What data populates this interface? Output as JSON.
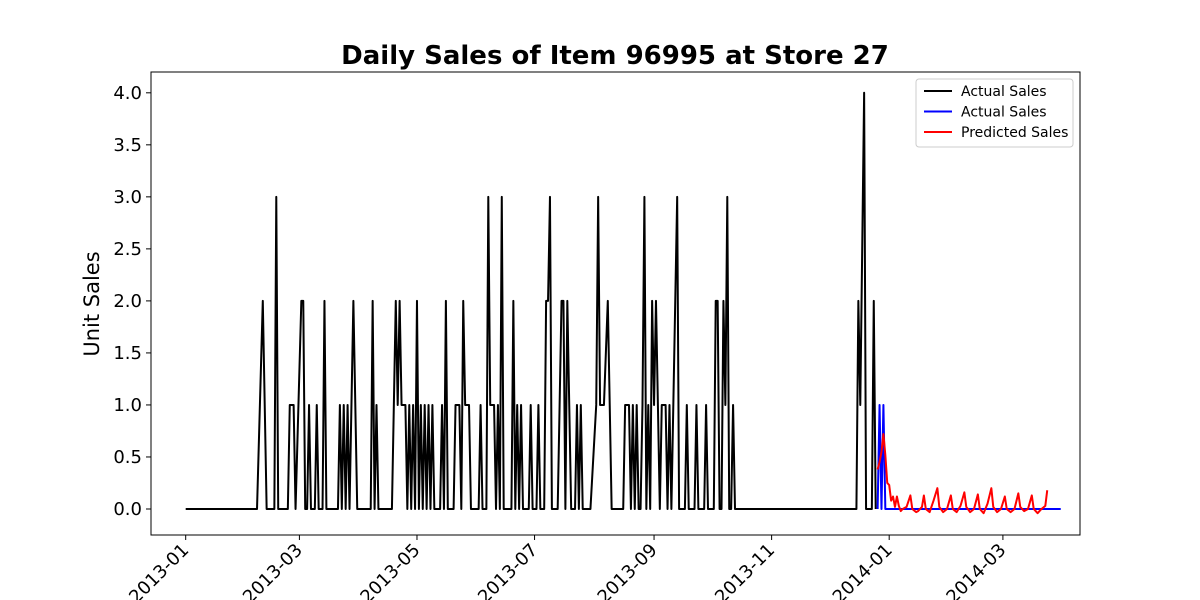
{
  "chart_data": {
    "type": "line",
    "title": "Daily Sales of Item 96995 at Store 27",
    "xlabel": "",
    "ylabel": "Unit Sales",
    "xlim": [
      "2012-12-14",
      "2014-04-10"
    ],
    "ylim": [
      -0.25,
      4.2
    ],
    "x_ticks": [
      "2013-01",
      "2013-03",
      "2013-05",
      "2013-07",
      "2013-09",
      "2013-11",
      "2014-01",
      "2014-03"
    ],
    "y_ticks": [
      "0.0",
      "0.5",
      "1.0",
      "1.5",
      "2.0",
      "2.5",
      "3.0",
      "3.5",
      "4.0"
    ],
    "grid": false,
    "legend_position": "top-right",
    "series": [
      {
        "name": "Actual Sales",
        "color": "#000000",
        "points": [
          [
            "2013-01-01",
            0
          ],
          [
            "2013-02-07",
            0
          ],
          [
            "2013-02-10",
            2
          ],
          [
            "2013-02-12",
            0
          ],
          [
            "2013-02-16",
            0
          ],
          [
            "2013-02-17",
            3
          ],
          [
            "2013-02-18",
            0
          ],
          [
            "2013-02-23",
            0
          ],
          [
            "2013-02-24",
            1
          ],
          [
            "2013-02-26",
            1
          ],
          [
            "2013-02-27",
            0
          ],
          [
            "2013-03-02",
            2
          ],
          [
            "2013-03-03",
            2
          ],
          [
            "2013-03-04",
            0
          ],
          [
            "2013-03-05",
            0
          ],
          [
            "2013-03-06",
            1
          ],
          [
            "2013-03-07",
            0
          ],
          [
            "2013-03-09",
            0
          ],
          [
            "2013-03-10",
            1
          ],
          [
            "2013-03-11",
            0
          ],
          [
            "2013-03-13",
            0
          ],
          [
            "2013-03-14",
            2
          ],
          [
            "2013-03-15",
            0
          ],
          [
            "2013-03-21",
            0
          ],
          [
            "2013-03-22",
            1
          ],
          [
            "2013-03-23",
            0
          ],
          [
            "2013-03-24",
            1
          ],
          [
            "2013-03-25",
            0
          ],
          [
            "2013-03-26",
            1
          ],
          [
            "2013-03-27",
            0
          ],
          [
            "2013-03-29",
            2
          ],
          [
            "2013-03-31",
            0
          ],
          [
            "2013-04-07",
            0
          ],
          [
            "2013-04-08",
            2
          ],
          [
            "2013-04-09",
            0
          ],
          [
            "2013-04-10",
            1
          ],
          [
            "2013-04-11",
            0
          ],
          [
            "2013-04-18",
            0
          ],
          [
            "2013-04-20",
            2
          ],
          [
            "2013-04-21",
            1
          ],
          [
            "2013-04-22",
            2
          ],
          [
            "2013-04-23",
            1
          ],
          [
            "2013-04-25",
            1
          ],
          [
            "2013-04-26",
            0
          ],
          [
            "2013-04-27",
            1
          ],
          [
            "2013-04-28",
            0
          ],
          [
            "2013-04-29",
            1
          ],
          [
            "2013-04-30",
            0
          ],
          [
            "2013-05-01",
            2
          ],
          [
            "2013-05-02",
            0
          ],
          [
            "2013-05-03",
            1
          ],
          [
            "2013-05-04",
            0
          ],
          [
            "2013-05-05",
            1
          ],
          [
            "2013-05-06",
            0
          ],
          [
            "2013-05-07",
            1
          ],
          [
            "2013-05-08",
            0
          ],
          [
            "2013-05-09",
            1
          ],
          [
            "2013-05-10",
            0
          ],
          [
            "2013-05-13",
            0
          ],
          [
            "2013-05-14",
            1
          ],
          [
            "2013-05-15",
            0
          ],
          [
            "2013-05-16",
            2
          ],
          [
            "2013-05-17",
            0
          ],
          [
            "2013-05-20",
            0
          ],
          [
            "2013-05-21",
            1
          ],
          [
            "2013-05-23",
            1
          ],
          [
            "2013-05-24",
            0
          ],
          [
            "2013-05-25",
            2
          ],
          [
            "2013-05-26",
            1
          ],
          [
            "2013-05-28",
            1
          ],
          [
            "2013-05-29",
            0
          ],
          [
            "2013-06-02",
            0
          ],
          [
            "2013-06-03",
            1
          ],
          [
            "2013-06-04",
            0
          ],
          [
            "2013-06-06",
            0
          ],
          [
            "2013-06-07",
            3
          ],
          [
            "2013-06-08",
            1
          ],
          [
            "2013-06-10",
            1
          ],
          [
            "2013-06-11",
            0
          ],
          [
            "2013-06-12",
            1
          ],
          [
            "2013-06-13",
            0
          ],
          [
            "2013-06-14",
            3
          ],
          [
            "2013-06-15",
            0
          ],
          [
            "2013-06-19",
            0
          ],
          [
            "2013-06-20",
            2
          ],
          [
            "2013-06-21",
            0
          ],
          [
            "2013-06-22",
            1
          ],
          [
            "2013-06-23",
            0
          ],
          [
            "2013-06-24",
            1
          ],
          [
            "2013-06-25",
            0
          ],
          [
            "2013-06-28",
            0
          ],
          [
            "2013-06-29",
            1
          ],
          [
            "2013-06-30",
            0
          ],
          [
            "2013-07-02",
            0
          ],
          [
            "2013-07-03",
            1
          ],
          [
            "2013-07-04",
            0
          ],
          [
            "2013-07-06",
            0
          ],
          [
            "2013-07-07",
            2
          ],
          [
            "2013-07-08",
            2
          ],
          [
            "2013-07-09",
            3
          ],
          [
            "2013-07-10",
            0
          ],
          [
            "2013-07-13",
            0
          ],
          [
            "2013-07-14",
            1
          ],
          [
            "2013-07-15",
            2
          ],
          [
            "2013-07-16",
            2
          ],
          [
            "2013-07-17",
            0
          ],
          [
            "2013-07-18",
            2
          ],
          [
            "2013-07-19",
            1
          ],
          [
            "2013-07-20",
            0
          ],
          [
            "2013-07-22",
            0
          ],
          [
            "2013-07-23",
            1
          ],
          [
            "2013-07-24",
            0
          ],
          [
            "2013-07-25",
            1
          ],
          [
            "2013-07-26",
            0
          ],
          [
            "2013-07-30",
            0
          ],
          [
            "2013-08-02",
            1
          ],
          [
            "2013-08-03",
            3
          ],
          [
            "2013-08-04",
            1
          ],
          [
            "2013-08-06",
            1
          ],
          [
            "2013-08-08",
            2
          ],
          [
            "2013-08-10",
            0
          ],
          [
            "2013-08-11",
            0
          ],
          [
            "2013-08-16",
            0
          ],
          [
            "2013-08-17",
            1
          ],
          [
            "2013-08-19",
            1
          ],
          [
            "2013-08-20",
            0
          ],
          [
            "2013-08-21",
            1
          ],
          [
            "2013-08-22",
            0
          ],
          [
            "2013-08-23",
            1
          ],
          [
            "2013-08-24",
            0
          ],
          [
            "2013-08-25",
            0
          ],
          [
            "2013-08-26",
            1
          ],
          [
            "2013-08-27",
            3
          ],
          [
            "2013-08-28",
            0
          ],
          [
            "2013-08-29",
            1
          ],
          [
            "2013-08-30",
            0
          ],
          [
            "2013-08-31",
            2
          ],
          [
            "2013-09-01",
            1
          ],
          [
            "2013-09-02",
            2
          ],
          [
            "2013-09-03",
            1
          ],
          [
            "2013-09-04",
            0
          ],
          [
            "2013-09-05",
            1
          ],
          [
            "2013-09-07",
            1
          ],
          [
            "2013-09-08",
            0
          ],
          [
            "2013-09-09",
            1
          ],
          [
            "2013-09-10",
            0
          ],
          [
            "2013-09-11",
            1
          ],
          [
            "2013-09-13",
            3
          ],
          [
            "2013-09-14",
            0
          ],
          [
            "2013-09-17",
            0
          ],
          [
            "2013-09-18",
            1
          ],
          [
            "2013-09-19",
            0
          ],
          [
            "2013-09-22",
            0
          ],
          [
            "2013-09-23",
            1
          ],
          [
            "2013-09-24",
            0
          ],
          [
            "2013-09-27",
            0
          ],
          [
            "2013-09-28",
            1
          ],
          [
            "2013-09-29",
            0
          ],
          [
            "2013-10-02",
            0
          ],
          [
            "2013-10-03",
            2
          ],
          [
            "2013-10-04",
            2
          ],
          [
            "2013-10-05",
            0
          ],
          [
            "2013-10-06",
            0
          ],
          [
            "2013-10-07",
            2
          ],
          [
            "2013-10-08",
            1
          ],
          [
            "2013-10-09",
            3
          ],
          [
            "2013-10-10",
            0
          ],
          [
            "2013-10-11",
            0
          ],
          [
            "2013-10-12",
            1
          ],
          [
            "2013-10-13",
            0
          ],
          [
            "2013-12-15",
            0
          ],
          [
            "2013-12-16",
            2
          ],
          [
            "2013-12-17",
            1
          ],
          [
            "2013-12-19",
            4
          ],
          [
            "2013-12-20",
            0
          ],
          [
            "2013-12-23",
            0
          ],
          [
            "2013-12-24",
            2
          ],
          [
            "2013-12-25",
            0
          ]
        ]
      },
      {
        "name": "Actual Sales",
        "color": "#0000ff",
        "points": [
          [
            "2013-12-26",
            0
          ],
          [
            "2013-12-27",
            1
          ],
          [
            "2013-12-28",
            0
          ],
          [
            "2013-12-29",
            1
          ],
          [
            "2013-12-30",
            0
          ],
          [
            "2014-03-31",
            0
          ]
        ]
      },
      {
        "name": "Predicted Sales",
        "color": "#ff0000",
        "points": [
          [
            "2013-12-26",
            0.38
          ],
          [
            "2013-12-27",
            0.45
          ],
          [
            "2013-12-28",
            0.55
          ],
          [
            "2013-12-29",
            0.72
          ],
          [
            "2013-12-30",
            0.52
          ],
          [
            "2013-12-31",
            0.25
          ],
          [
            "2014-01-01",
            0.23
          ],
          [
            "2014-01-02",
            0.08
          ],
          [
            "2014-01-03",
            0.12
          ],
          [
            "2014-01-04",
            0.02
          ],
          [
            "2014-01-05",
            0.12
          ],
          [
            "2014-01-06",
            0.03
          ],
          [
            "2014-01-07",
            -0.02
          ],
          [
            "2014-01-08",
            0.0
          ],
          [
            "2014-01-10",
            0.02
          ],
          [
            "2014-01-12",
            0.13
          ],
          [
            "2014-01-13",
            0.0
          ],
          [
            "2014-01-15",
            -0.03
          ],
          [
            "2014-01-16",
            -0.02
          ],
          [
            "2014-01-18",
            0.02
          ],
          [
            "2014-01-19",
            0.13
          ],
          [
            "2014-01-20",
            0.0
          ],
          [
            "2014-01-22",
            -0.03
          ],
          [
            "2014-01-24",
            0.08
          ],
          [
            "2014-01-26",
            0.2
          ],
          [
            "2014-01-27",
            0.02
          ],
          [
            "2014-01-29",
            -0.03
          ],
          [
            "2014-01-31",
            0.0
          ],
          [
            "2014-02-02",
            0.13
          ],
          [
            "2014-02-03",
            0.0
          ],
          [
            "2014-02-05",
            -0.03
          ],
          [
            "2014-02-07",
            0.03
          ],
          [
            "2014-02-09",
            0.16
          ],
          [
            "2014-02-10",
            0.02
          ],
          [
            "2014-02-12",
            -0.03
          ],
          [
            "2014-02-14",
            0.0
          ],
          [
            "2014-02-16",
            0.14
          ],
          [
            "2014-02-17",
            0.0
          ],
          [
            "2014-02-19",
            -0.04
          ],
          [
            "2014-02-21",
            0.05
          ],
          [
            "2014-02-23",
            0.2
          ],
          [
            "2014-02-24",
            0.02
          ],
          [
            "2014-02-26",
            -0.03
          ],
          [
            "2014-02-28",
            0.0
          ],
          [
            "2014-03-02",
            0.12
          ],
          [
            "2014-03-03",
            0.0
          ],
          [
            "2014-03-05",
            -0.03
          ],
          [
            "2014-03-07",
            0.0
          ],
          [
            "2014-03-09",
            0.15
          ],
          [
            "2014-03-10",
            0.02
          ],
          [
            "2014-03-12",
            -0.02
          ],
          [
            "2014-03-14",
            0.0
          ],
          [
            "2014-03-16",
            0.13
          ],
          [
            "2014-03-17",
            0.0
          ],
          [
            "2014-03-19",
            -0.04
          ],
          [
            "2014-03-21",
            0.0
          ],
          [
            "2014-03-23",
            0.03
          ],
          [
            "2014-03-24",
            0.18
          ]
        ]
      }
    ]
  }
}
